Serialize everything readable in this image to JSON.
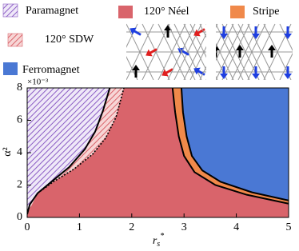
{
  "chart_data": {
    "type": "phase-diagram",
    "xlabel": {
      "base": "r",
      "sub": "s",
      "sup": "*"
    },
    "ylabel": "α²",
    "y_multiplier": "×10⁻³",
    "xlim": [
      0,
      5
    ],
    "ylim": [
      0,
      8
    ],
    "xticks": [
      0,
      1,
      2,
      3,
      4,
      5
    ],
    "yticks": [
      0,
      2,
      4,
      6,
      8
    ],
    "regions": [
      {
        "name": "Paramagnet",
        "color": "#8a5cc4",
        "hatch": true,
        "hatch_background": "#efe8f8",
        "between": [
          null,
          0
        ]
      },
      {
        "name": "120° SDW",
        "color": "#d9646b",
        "hatch": true,
        "hatch_background": "#f7d6d6",
        "between": [
          0,
          1
        ]
      },
      {
        "name": "120° Néel",
        "color": "#d9646b",
        "hatch": false,
        "between": [
          null,
          null
        ]
      },
      {
        "name": "Stripe",
        "color": "#f0894a",
        "hatch": false,
        "between": [
          2,
          3
        ]
      },
      {
        "name": "Ferromagnet",
        "color": "#4a78d4",
        "hatch": false,
        "between": [
          3,
          null
        ]
      }
    ],
    "boundaries": [
      {
        "dash": false,
        "x": [
          0,
          0.05,
          0.2,
          0.5,
          0.8,
          1.1,
          1.3,
          1.45,
          1.58
        ],
        "y": [
          0.2,
          0.8,
          1.5,
          2.3,
          3.1,
          4.2,
          5.3,
          6.6,
          8
        ]
      },
      {
        "dash": true,
        "x": [
          0.2,
          0.5,
          0.9,
          1.25,
          1.5,
          1.7,
          1.85
        ],
        "y": [
          1.5,
          2.2,
          3.0,
          3.9,
          4.9,
          6.2,
          8
        ]
      },
      {
        "dash": false,
        "x": [
          2.78,
          2.83,
          2.9,
          3.0,
          3.2,
          3.6,
          4.2,
          5
        ],
        "y": [
          8,
          6.5,
          5,
          3.8,
          2.8,
          2.0,
          1.4,
          0.85
        ]
      },
      {
        "dash": false,
        "x": [
          2.95,
          2.98,
          3.05,
          3.15,
          3.35,
          3.7,
          4.3,
          5
        ],
        "y": [
          8,
          6.5,
          5,
          3.8,
          2.9,
          2.2,
          1.55,
          1.05
        ]
      }
    ]
  }
}
